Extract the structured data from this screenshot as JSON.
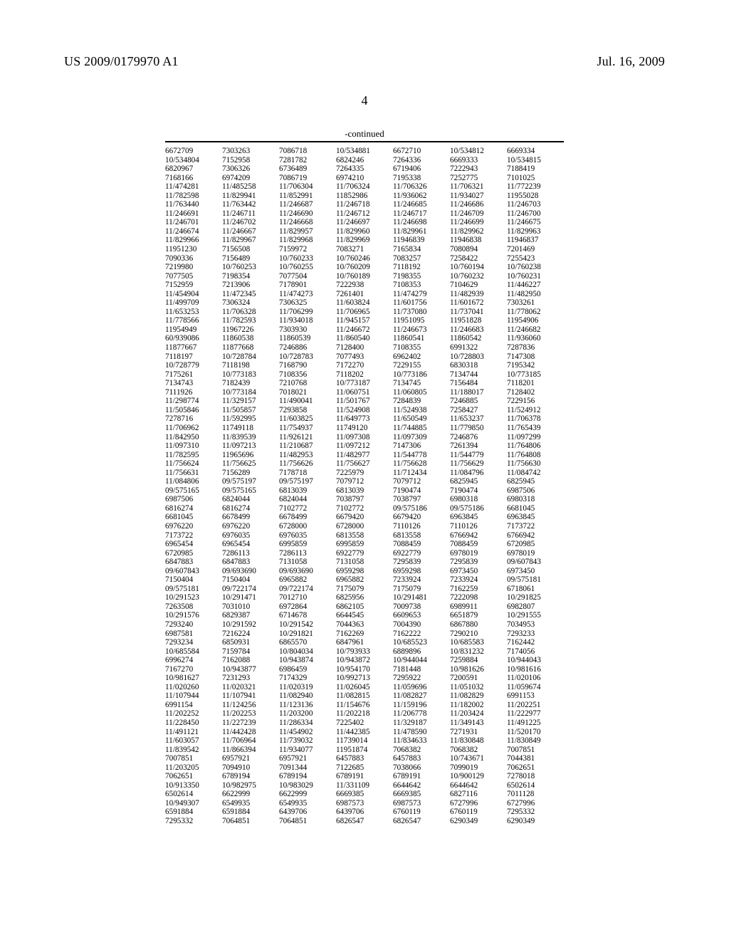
{
  "header": {
    "left": "US 2009/0179970 A1",
    "right": "Jul. 16, 2009"
  },
  "page_number": "4",
  "section_label": "-continued",
  "columns": 7,
  "rows": [
    [
      "6672709",
      "7303263",
      "7086718",
      "10/534881",
      "6672710",
      "10/534812",
      "6669334"
    ],
    [
      "10/534804",
      "7152958",
      "7281782",
      "6824246",
      "7264336",
      "6669333",
      "10/534815"
    ],
    [
      "6820967",
      "7306326",
      "6736489",
      "7264335",
      "6719406",
      "7222943",
      "7188419"
    ],
    [
      "7168166",
      "6974209",
      "7086719",
      "6974210",
      "7195338",
      "7252775",
      "7101025"
    ],
    [
      "11/474281",
      "11/485258",
      "11/706304",
      "11/706324",
      "11/706326",
      "11/706321",
      "11/772239"
    ],
    [
      "11/782598",
      "11/829941",
      "11/852991",
      "11852986",
      "11/936062",
      "11/934027",
      "11955028"
    ],
    [
      "11/763440",
      "11/763442",
      "11/246687",
      "11/246718",
      "11/246685",
      "11/246686",
      "11/246703"
    ],
    [
      "11/246691",
      "11/246711",
      "11/246690",
      "11/246712",
      "11/246717",
      "11/246709",
      "11/246700"
    ],
    [
      "11/246701",
      "11/246702",
      "11/246668",
      "11/246697",
      "11/246698",
      "11/246699",
      "11/246675"
    ],
    [
      "11/246674",
      "11/246667",
      "11/829957",
      "11/829960",
      "11/829961",
      "11/829962",
      "11/829963"
    ],
    [
      "11/829966",
      "11/829967",
      "11/829968",
      "11/829969",
      "11946839",
      "11946838",
      "11946837"
    ],
    [
      "11951230",
      "7156508",
      "7159972",
      "7083271",
      "7165834",
      "7080894",
      "7201469"
    ],
    [
      "7090336",
      "7156489",
      "10/760233",
      "10/760246",
      "7083257",
      "7258422",
      "7255423"
    ],
    [
      "7219980",
      "10/760253",
      "10/760255",
      "10/760209",
      "7118192",
      "10/760194",
      "10/760238"
    ],
    [
      "7077505",
      "7198354",
      "7077504",
      "10/760189",
      "7198355",
      "10/760232",
      "10/760231"
    ],
    [
      "7152959",
      "7213906",
      "7178901",
      "7222938",
      "7108353",
      "7104629",
      "11/446227"
    ],
    [
      "11/454904",
      "11/472345",
      "11/474273",
      "7261401",
      "11/474279",
      "11/482939",
      "11/482950"
    ],
    [
      "11/499709",
      "7306324",
      "7306325",
      "11/603824",
      "11/601756",
      "11/601672",
      "7303261"
    ],
    [
      "11/653253",
      "11/706328",
      "11/706299",
      "11/706965",
      "11/737080",
      "11/737041",
      "11/778062"
    ],
    [
      "11/778566",
      "11/782593",
      "11/934018",
      "11/945157",
      "11951095",
      "11951828",
      "11954906"
    ],
    [
      "11954949",
      "11967226",
      "7303930",
      "11/246672",
      "11/246673",
      "11/246683",
      "11/246682"
    ],
    [
      "60/939086",
      "11860538",
      "11860539",
      "11/860540",
      "11860541",
      "11860542",
      "11/936060"
    ],
    [
      "11877667",
      "11877668",
      "7246886",
      "7128400",
      "7108355",
      "6991322",
      "7287836"
    ],
    [
      "7118197",
      "10/728784",
      "10/728783",
      "7077493",
      "6962402",
      "10/728803",
      "7147308"
    ],
    [
      "10/728779",
      "7118198",
      "7168790",
      "7172270",
      "7229155",
      "6830318",
      "7195342"
    ],
    [
      "7175261",
      "10/773183",
      "7108356",
      "7118202",
      "10/773186",
      "7134744",
      "10/773185"
    ],
    [
      "7134743",
      "7182439",
      "7210768",
      "10/773187",
      "7134745",
      "7156484",
      "7118201"
    ],
    [
      "7111926",
      "10/773184",
      "7018021",
      "11/060751",
      "11/060805",
      "11/188017",
      "7128402"
    ],
    [
      "11/298774",
      "11/329157",
      "11/490041",
      "11/501767",
      "7284839",
      "7246885",
      "7229156"
    ],
    [
      "11/505846",
      "11/505857",
      "7293858",
      "11/524908",
      "11/524938",
      "7258427",
      "11/524912"
    ],
    [
      "7278716",
      "11/592995",
      "11/603825",
      "11/649773",
      "11/650549",
      "11/653237",
      "11/706378"
    ],
    [
      "11/706962",
      "11749118",
      "11/754937",
      "11749120",
      "11/744885",
      "11/779850",
      "11/765439"
    ],
    [
      "11/842950",
      "11/839539",
      "11/926121",
      "11/097308",
      "11/097309",
      "7246876",
      "11/097299"
    ],
    [
      "11/097310",
      "11/097213",
      "11/210687",
      "11/097212",
      "7147306",
      "7261394",
      "11/764806"
    ],
    [
      "11/782595",
      "11965696",
      "11/482953",
      "11/482977",
      "11/544778",
      "11/544779",
      "11/764808"
    ],
    [
      "11/756624",
      "11/756625",
      "11/756626",
      "11/756627",
      "11/756628",
      "11/756629",
      "11/756630"
    ],
    [
      "11/756631",
      "7156289",
      "7178718",
      "7225979",
      "11/712434",
      "11/084796",
      "11/084742"
    ],
    [
      "11/084806",
      "09/575197",
      "09/575197",
      "7079712",
      "7079712",
      "6825945",
      "6825945"
    ],
    [
      "09/575165",
      "09/575165",
      "6813039",
      "6813039",
      "7190474",
      "7190474",
      "6987506"
    ],
    [
      "6987506",
      "6824044",
      "6824044",
      "7038797",
      "7038797",
      "6980318",
      "6980318"
    ],
    [
      "6816274",
      "6816274",
      "7102772",
      "7102772",
      "09/575186",
      "09/575186",
      "6681045"
    ],
    [
      "6681045",
      "6678499",
      "6678499",
      "6679420",
      "6679420",
      "6963845",
      "6963845"
    ],
    [
      "6976220",
      "6976220",
      "6728000",
      "6728000",
      "7110126",
      "7110126",
      "7173722"
    ],
    [
      "7173722",
      "6976035",
      "6976035",
      "6813558",
      "6813558",
      "6766942",
      "6766942"
    ],
    [
      "6965454",
      "6965454",
      "6995859",
      "6995859",
      "7088459",
      "7088459",
      "6720985"
    ],
    [
      "6720985",
      "7286113",
      "7286113",
      "6922779",
      "6922779",
      "6978019",
      "6978019"
    ],
    [
      "6847883",
      "6847883",
      "7131058",
      "7131058",
      "7295839",
      "7295839",
      "09/607843"
    ],
    [
      "09/607843",
      "09/693690",
      "09/693690",
      "6959298",
      "6959298",
      "6973450",
      "6973450"
    ],
    [
      "7150404",
      "7150404",
      "6965882",
      "6965882",
      "7233924",
      "7233924",
      "09/575181"
    ],
    [
      "09/575181",
      "09/722174",
      "09/722174",
      "7175079",
      "7175079",
      "7162259",
      "6718061"
    ],
    [
      "10/291523",
      "10/291471",
      "7012710",
      "6825956",
      "10/291481",
      "7222098",
      "10/291825"
    ],
    [
      "7263508",
      "7031010",
      "6972864",
      "6862105",
      "7009738",
      "6989911",
      "6982807"
    ],
    [
      "10/291576",
      "6829387",
      "6714678",
      "6644545",
      "6609653",
      "6651879",
      "10/291555"
    ],
    [
      "7293240",
      "10/291592",
      "10/291542",
      "7044363",
      "7004390",
      "6867880",
      "7034953"
    ],
    [
      "6987581",
      "7216224",
      "10/291821",
      "7162269",
      "7162222",
      "7290210",
      "7293233"
    ],
    [
      "7293234",
      "6850931",
      "6865570",
      "6847961",
      "10/685523",
      "10/685583",
      "7162442"
    ],
    [
      "10/685584",
      "7159784",
      "10/804034",
      "10/793933",
      "6889896",
      "10/831232",
      "7174056"
    ],
    [
      "6996274",
      "7162088",
      "10/943874",
      "10/943872",
      "10/944044",
      "7259884",
      "10/944043"
    ],
    [
      "7167270",
      "10/943877",
      "6986459",
      "10/954170",
      "7181448",
      "10/981626",
      "10/981616"
    ],
    [
      "10/981627",
      "7231293",
      "7174329",
      "10/992713",
      "7295922",
      "7200591",
      "11/020106"
    ],
    [
      "11/020260",
      "11/020321",
      "11/020319",
      "11/026045",
      "11/059696",
      "11/051032",
      "11/059674"
    ],
    [
      "11/107944",
      "11/107941",
      "11/082940",
      "11/082815",
      "11/082827",
      "11/082829",
      "6991153"
    ],
    [
      "6991154",
      "11/124256",
      "11/123136",
      "11/154676",
      "11/159196",
      "11/182002",
      "11/202251"
    ],
    [
      "11/202252",
      "11/202253",
      "11/203200",
      "11/202218",
      "11/206778",
      "11/203424",
      "11/222977"
    ],
    [
      "11/228450",
      "11/227239",
      "11/286334",
      "7225402",
      "11/329187",
      "11/349143",
      "11/491225"
    ],
    [
      "11/491121",
      "11/442428",
      "11/454902",
      "11/442385",
      "11/478590",
      "7271931",
      "11/520170"
    ],
    [
      "11/603057",
      "11/706964",
      "11/739032",
      "11739014",
      "11/834633",
      "11/830848",
      "11/830849"
    ],
    [
      "11/839542",
      "11/866394",
      "11/934077",
      "11951874",
      "7068382",
      "7068382",
      "7007851"
    ],
    [
      "7007851",
      "6957921",
      "6957921",
      "6457883",
      "6457883",
      "10/743671",
      "7044381"
    ],
    [
      "11/203205",
      "7094910",
      "7091344",
      "7122685",
      "7038066",
      "7099019",
      "7062651"
    ],
    [
      "7062651",
      "6789194",
      "6789194",
      "6789191",
      "6789191",
      "10/900129",
      "7278018"
    ],
    [
      "10/913350",
      "10/982975",
      "10/983029",
      "11/331109",
      "6644642",
      "6644642",
      "6502614"
    ],
    [
      "6502614",
      "6622999",
      "6622999",
      "6669385",
      "6669385",
      "6827116",
      "7011128"
    ],
    [
      "10/949307",
      "6549935",
      "6549935",
      "6987573",
      "6987573",
      "6727996",
      "6727996"
    ],
    [
      "6591884",
      "6591884",
      "6439706",
      "6439706",
      "6760119",
      "6760119",
      "7295332"
    ],
    [
      "7295332",
      "7064851",
      "7064851",
      "6826547",
      "6826547",
      "6290349",
      "6290349"
    ]
  ]
}
